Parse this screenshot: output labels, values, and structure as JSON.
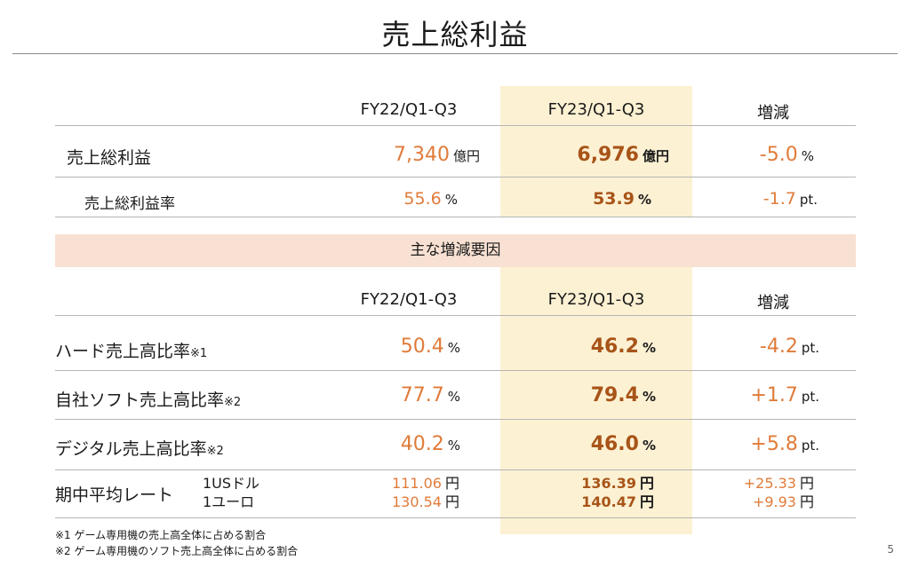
{
  "title": "売上総利益",
  "headers": {
    "col1": "FY22/Q1-Q3",
    "col2": "FY23/Q1-Q3",
    "col3": "増減"
  },
  "top": {
    "gross_profit": {
      "label": "売上総利益",
      "v1": "7,340",
      "u1": "億円",
      "v2": "6,976",
      "u2": "億円",
      "v3": "-5.0",
      "u3": "%"
    },
    "margin": {
      "label": "売上総利益率",
      "v1": "55.6",
      "u1": "%",
      "v2": "53.9",
      "u2": "%",
      "v3": "-1.7",
      "u3": "pt."
    }
  },
  "band": "主な増減要因",
  "bottom": {
    "hw": {
      "label": "ハード売上高比率",
      "note": "※1",
      "v1": "50.4",
      "u1": "%",
      "v2": "46.2",
      "u2": "%",
      "v3": "-4.2",
      "u3": "pt."
    },
    "own": {
      "label": "自社ソフト売上高比率",
      "note": "※2",
      "v1": "77.7",
      "u1": "%",
      "v2": "79.4",
      "u2": "%",
      "v3": "+1.7",
      "u3": "pt."
    },
    "digital": {
      "label": "デジタル売上高比率",
      "note": "※2",
      "v1": "40.2",
      "u1": "%",
      "v2": "46.0",
      "u2": "%",
      "v3": "+5.8",
      "u3": "pt."
    },
    "rate": {
      "label": "期中平均レート",
      "usd_label": "1USドル",
      "eur_label": "1ユーロ",
      "usd": {
        "v1": "111.06",
        "v2": "136.39",
        "v3": "+25.33",
        "u": "円"
      },
      "eur": {
        "v1": "130.54",
        "v2": "140.47",
        "v3": "+9.93",
        "u": "円"
      }
    }
  },
  "footnotes": [
    "※1 ゲーム専用機の売上高全体に占める割合",
    "※2 ゲーム専用機のソフト売上高全体に占める割合"
  ],
  "page_number": "5"
}
